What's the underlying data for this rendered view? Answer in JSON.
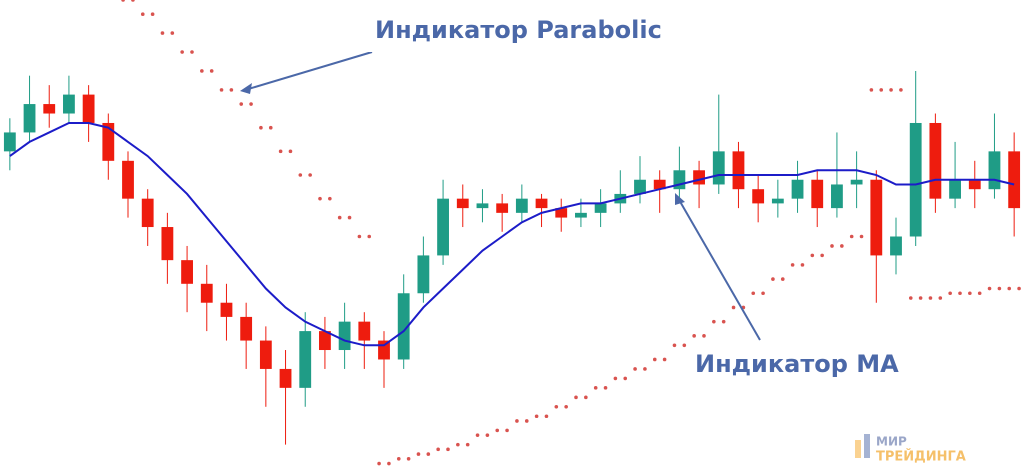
{
  "chart_data": {
    "type": "candlestick",
    "ylim": [
      0,
      100
    ],
    "up_color": "#1f9c86",
    "down_color": "#ee1c0e",
    "open": [
      68,
      72,
      78,
      76,
      80,
      74,
      66,
      58,
      52,
      45,
      40,
      36,
      33,
      28,
      22,
      18,
      30,
      26,
      32,
      28,
      24,
      38,
      46,
      58,
      56,
      57,
      55,
      58,
      56,
      54,
      55,
      57,
      59,
      62,
      60,
      64,
      61,
      68,
      60,
      57,
      58,
      62,
      56,
      61,
      62,
      46,
      50,
      74,
      58,
      62,
      60,
      68
    ],
    "close": [
      72,
      78,
      76,
      80,
      74,
      66,
      58,
      52,
      45,
      40,
      36,
      33,
      28,
      22,
      18,
      30,
      26,
      32,
      28,
      24,
      38,
      46,
      58,
      56,
      57,
      55,
      58,
      56,
      54,
      55,
      57,
      59,
      62,
      60,
      64,
      61,
      68,
      60,
      57,
      58,
      62,
      56,
      61,
      62,
      46,
      50,
      74,
      58,
      62,
      60,
      68,
      56
    ],
    "high": [
      75,
      84,
      82,
      84,
      82,
      76,
      68,
      60,
      55,
      48,
      44,
      40,
      36,
      31,
      26,
      34,
      33,
      36,
      34,
      30,
      42,
      50,
      62,
      61,
      60,
      59,
      61,
      59,
      58,
      58,
      60,
      64,
      67,
      64,
      69,
      66,
      80,
      70,
      63,
      62,
      66,
      64,
      72,
      68,
      64,
      54,
      85,
      76,
      70,
      66,
      76,
      72
    ],
    "low": [
      64,
      70,
      73,
      74,
      70,
      62,
      54,
      48,
      40,
      34,
      30,
      28,
      22,
      14,
      6,
      14,
      22,
      22,
      22,
      18,
      22,
      36,
      44,
      52,
      53,
      51,
      53,
      52,
      51,
      52,
      52,
      55,
      57,
      55,
      58,
      56,
      59,
      56,
      53,
      54,
      55,
      52,
      54,
      56,
      36,
      42,
      48,
      55,
      56,
      56,
      58,
      50
    ],
    "ma": {
      "color": "#1c1cc8",
      "values": [
        67,
        70,
        72,
        74,
        74,
        73,
        70,
        67,
        63,
        59,
        54,
        49,
        44,
        39,
        35,
        32,
        30,
        28,
        27,
        27,
        30,
        35,
        39,
        43,
        47,
        50,
        53,
        55,
        56,
        57,
        57,
        58,
        59,
        60,
        61,
        62,
        63,
        63,
        63,
        63,
        63,
        64,
        64,
        64,
        63,
        61,
        61,
        62,
        62,
        62,
        62,
        61
      ]
    },
    "parabolic": {
      "color": "#d9534f",
      "values": [
        null,
        null,
        null,
        null,
        null,
        null,
        100,
        97,
        93,
        89,
        85,
        81,
        78,
        73,
        68,
        63,
        58,
        54,
        50,
        2,
        3,
        4,
        5,
        6,
        8,
        9,
        11,
        12,
        14,
        16,
        18,
        20,
        22,
        24,
        27,
        29,
        32,
        35,
        38,
        41,
        44,
        46,
        48,
        50,
        81,
        81,
        37,
        37,
        38,
        38,
        39,
        39
      ]
    },
    "annotations": [
      "Индикатор Parabolic",
      "Индикатор MA"
    ]
  },
  "logo": {
    "line1": "МИР",
    "line2": "ТРЕЙДИНГА"
  }
}
